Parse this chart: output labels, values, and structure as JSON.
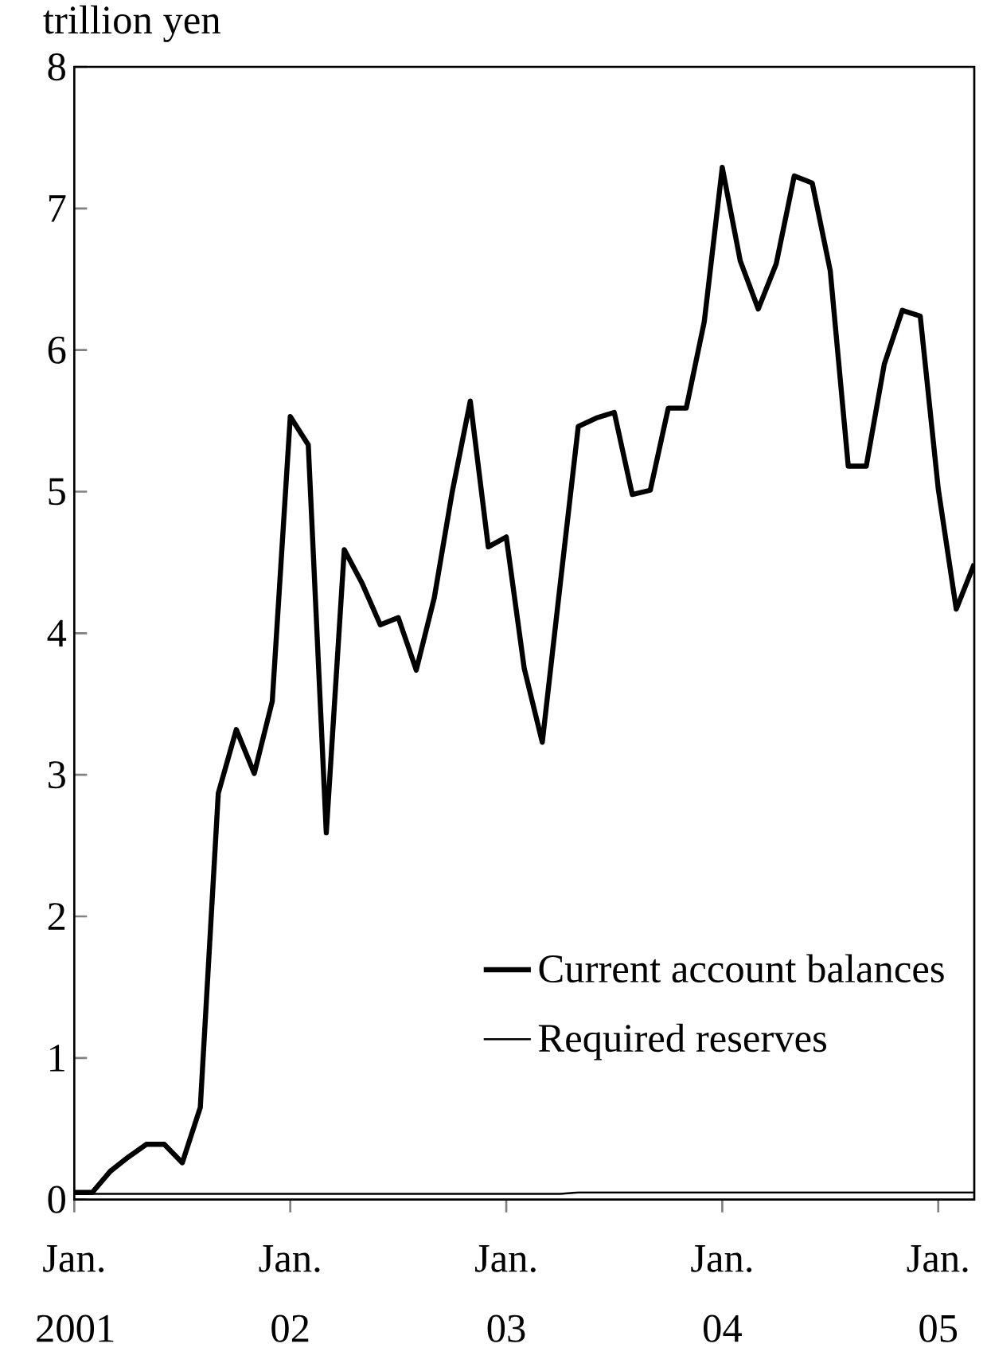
{
  "chart_data": {
    "type": "line",
    "ylabel": "trillion yen",
    "x": [
      "2001-01",
      "2001-02",
      "2001-03",
      "2001-04",
      "2001-05",
      "2001-06",
      "2001-07",
      "2001-08",
      "2001-09",
      "2001-10",
      "2001-11",
      "2001-12",
      "2002-01",
      "2002-02",
      "2002-03",
      "2002-04",
      "2002-05",
      "2002-06",
      "2002-07",
      "2002-08",
      "2002-09",
      "2002-10",
      "2002-11",
      "2002-12",
      "2003-01",
      "2003-02",
      "2003-03",
      "2003-04",
      "2003-05",
      "2003-06",
      "2003-07",
      "2003-08",
      "2003-09",
      "2003-10",
      "2003-11",
      "2003-12",
      "2004-01",
      "2004-02",
      "2004-03",
      "2004-04",
      "2004-05",
      "2004-06",
      "2004-07",
      "2004-08",
      "2004-09",
      "2004-10",
      "2004-11",
      "2004-12",
      "2005-01",
      "2005-02",
      "2005-03"
    ],
    "series": [
      {
        "name": "Current account balances",
        "color": "#000000",
        "values": [
          0.05,
          0.05,
          0.2,
          0.3,
          0.39,
          0.39,
          0.26,
          0.65,
          2.87,
          3.32,
          3.01,
          3.52,
          5.53,
          5.33,
          2.59,
          4.59,
          4.35,
          4.06,
          4.11,
          3.74,
          4.25,
          5.0,
          5.64,
          4.61,
          4.68,
          3.75,
          3.23,
          4.35,
          5.46,
          5.52,
          5.56,
          4.98,
          5.01,
          5.59,
          5.59,
          6.2,
          7.29,
          6.63,
          6.29,
          6.61,
          7.23,
          7.18,
          6.56,
          5.18,
          5.18,
          5.9,
          6.28,
          6.24,
          5.02,
          4.17,
          4.49
        ]
      },
      {
        "name": "Required reserves",
        "color": "#000000",
        "values": [
          0.04,
          0.04,
          0.04,
          0.04,
          0.04,
          0.04,
          0.04,
          0.04,
          0.04,
          0.04,
          0.04,
          0.04,
          0.04,
          0.04,
          0.04,
          0.04,
          0.04,
          0.04,
          0.04,
          0.04,
          0.04,
          0.04,
          0.04,
          0.04,
          0.04,
          0.04,
          0.04,
          0.04,
          0.05,
          0.05,
          0.05,
          0.05,
          0.05,
          0.05,
          0.05,
          0.05,
          0.05,
          0.05,
          0.05,
          0.05,
          0.05,
          0.05,
          0.05,
          0.05,
          0.05,
          0.05,
          0.05,
          0.05,
          0.05,
          0.05,
          0.05
        ]
      }
    ],
    "xlim": [
      "2001-01",
      "2005-03"
    ],
    "xticks": [
      {
        "value": "2001-01",
        "label": "Jan. 2001"
      },
      {
        "value": "2002-01",
        "label": "Jan. 02"
      },
      {
        "value": "2003-01",
        "label": "Jan. 03"
      },
      {
        "value": "2004-01",
        "label": "Jan. 04"
      },
      {
        "value": "2005-01",
        "label": "Jan. 05"
      }
    ],
    "ylim": [
      0,
      8
    ],
    "yticks": [
      0,
      1,
      2,
      3,
      4,
      5,
      6,
      7,
      8
    ],
    "legend": "bottom right",
    "grid": false,
    "marker": "none",
    "line_style": "solid"
  }
}
